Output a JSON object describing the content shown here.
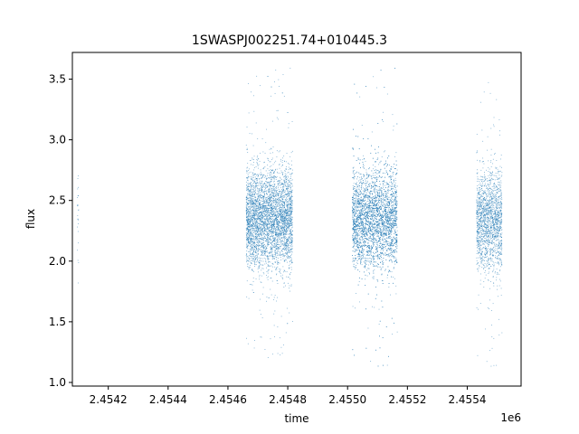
{
  "chart_data": {
    "type": "scatter",
    "title": "1SWASPJ002251.74+010445.3",
    "xlabel": "time",
    "ylabel": "flux",
    "x_offset_label": "1e6",
    "xlim": [
      2454080,
      2455580
    ],
    "ylim": [
      0.97,
      3.72
    ],
    "x_ticks": [
      2454200,
      2454400,
      2454600,
      2454800,
      2455000,
      2455200,
      2455400
    ],
    "x_tick_labels": [
      "2.4542",
      "2.4544",
      "2.4546",
      "2.4548",
      "2.4550",
      "2.4552",
      "2.4554"
    ],
    "y_ticks": [
      1.0,
      1.5,
      2.0,
      2.5,
      3.0,
      3.5
    ],
    "y_tick_labels": [
      "1.0",
      "1.5",
      "2.0",
      "2.5",
      "3.0",
      "3.5"
    ],
    "marker_color": "#1f77b4",
    "grid": false,
    "series": [
      {
        "clusters": [
          {
            "x_start": 2454095,
            "x_end": 2454100,
            "count": 25,
            "flux_center": 2.4,
            "flux_spread": 0.22,
            "flux_min": 1.8,
            "flux_max": 2.95
          },
          {
            "x_start": 2454660,
            "x_end": 2454815,
            "count": 4200,
            "flux_center": 2.35,
            "flux_spread": 0.2,
            "flux_min": 1.2,
            "flux_max": 3.6
          },
          {
            "x_start": 2455015,
            "x_end": 2455165,
            "count": 4200,
            "flux_center": 2.35,
            "flux_spread": 0.2,
            "flux_min": 1.1,
            "flux_max": 3.6
          },
          {
            "x_start": 2455430,
            "x_end": 2455515,
            "count": 1800,
            "flux_center": 2.33,
            "flux_spread": 0.2,
            "flux_min": 1.1,
            "flux_max": 3.55
          }
        ]
      }
    ]
  }
}
